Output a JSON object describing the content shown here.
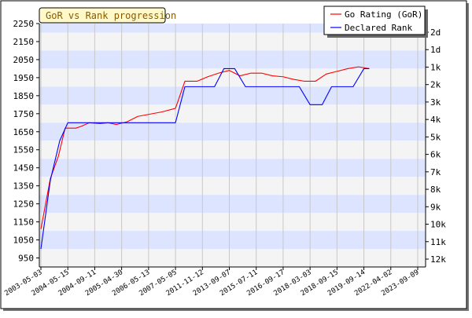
{
  "chart_data": {
    "type": "line",
    "title": "GoR vs Rank progression",
    "x": [
      "2003-05-03",
      "2004-05-15",
      "2004-09-11",
      "2005-04-30",
      "2006-05-13",
      "2007-05-05",
      "2011-11-12",
      "2013-09-07",
      "2015-07-11",
      "2016-09-17",
      "2018-03-03",
      "2018-09-15",
      "2019-09-14",
      "2022-04-02",
      "2023-09-09"
    ],
    "x_tick_labels": [
      "2003-05-03",
      "2004-05-15",
      "2004-09-11",
      "2005-04-30",
      "2006-05-13",
      "2007-05-05",
      "2011-11-12",
      "2013-09-07",
      "2015-07-11",
      "2016-09-17",
      "2018-03-03",
      "2018-09-15",
      "2019-09-14",
      "2022-04-02",
      "2023-09-09"
    ],
    "y_left_ticks": [
      950,
      1050,
      1150,
      1250,
      1350,
      1450,
      1550,
      1650,
      1750,
      1850,
      1950,
      2050,
      2150,
      2250
    ],
    "y_left_range": [
      900,
      2250
    ],
    "y_right_ticks": [
      "2d",
      "1d",
      "1k",
      "2k",
      "3k",
      "4k",
      "5k",
      "6k",
      "7k",
      "8k",
      "9k",
      "10k",
      "11k",
      "12k"
    ],
    "series": [
      {
        "name": "Go Rating (GoR)",
        "color": "#ff0000",
        "axis": "left",
        "points": [
          [
            0.0,
            1110
          ],
          [
            0.35,
            1390
          ],
          [
            0.65,
            1515
          ],
          [
            0.9,
            1670
          ],
          [
            1.3,
            1670
          ],
          [
            1.5,
            1680
          ],
          [
            1.8,
            1700
          ],
          [
            2.2,
            1695
          ],
          [
            2.5,
            1700
          ],
          [
            2.8,
            1690
          ],
          [
            3.2,
            1705
          ],
          [
            3.6,
            1735
          ],
          [
            4.5,
            1760
          ],
          [
            5.0,
            1780
          ],
          [
            5.35,
            1930
          ],
          [
            5.8,
            1930
          ],
          [
            6.2,
            1955
          ],
          [
            6.6,
            1975
          ],
          [
            7.0,
            1990
          ],
          [
            7.4,
            1960
          ],
          [
            7.8,
            1975
          ],
          [
            8.2,
            1975
          ],
          [
            8.6,
            1960
          ],
          [
            9.0,
            1955
          ],
          [
            9.4,
            1940
          ],
          [
            9.8,
            1930
          ],
          [
            10.2,
            1930
          ],
          [
            10.6,
            1970
          ],
          [
            11.0,
            1985
          ],
          [
            11.4,
            2000
          ],
          [
            11.8,
            2010
          ],
          [
            12.2,
            2000
          ]
        ]
      },
      {
        "name": "Declared Rank",
        "color": "#0000ff",
        "axis": "right",
        "points": [
          [
            0.0,
            1000
          ],
          [
            0.35,
            1380
          ],
          [
            0.7,
            1600
          ],
          [
            1.0,
            1700
          ],
          [
            5.0,
            1700
          ],
          [
            5.35,
            1900
          ],
          [
            6.45,
            1900
          ],
          [
            6.8,
            2000
          ],
          [
            7.2,
            2000
          ],
          [
            7.6,
            1900
          ],
          [
            9.6,
            1900
          ],
          [
            10.0,
            1800
          ],
          [
            10.45,
            1800
          ],
          [
            10.8,
            1900
          ],
          [
            11.6,
            1900
          ],
          [
            12.0,
            2000
          ],
          [
            12.2,
            2000
          ]
        ]
      }
    ],
    "grid": true,
    "legend_position": "top-right"
  },
  "colors": {
    "band_blue": "#dde4ff",
    "band_gray": "#f4f4f4",
    "title_bg": "#fff8c8",
    "title_text": "#8b5a00"
  }
}
